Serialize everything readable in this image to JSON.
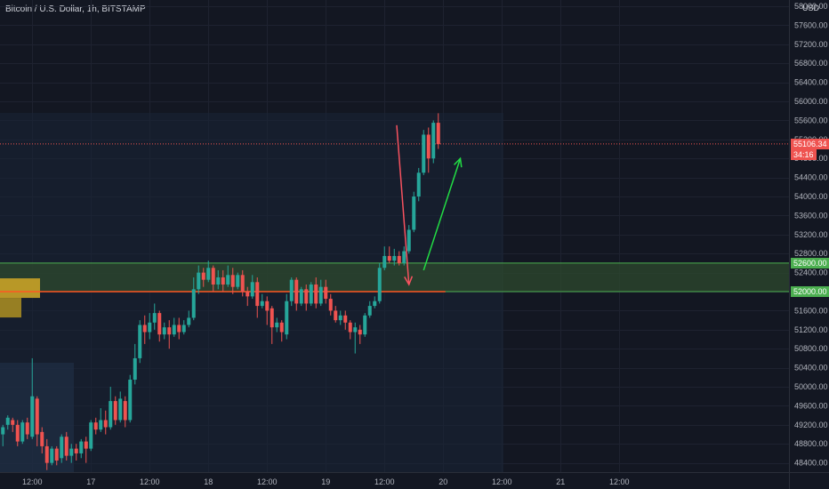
{
  "header": {
    "symbol_title": "Bitcoin / U.S. Dollar, 1h, BITSTAMP",
    "currency": "USD"
  },
  "colors": {
    "background": "#131722",
    "up": "#26a69a",
    "down": "#ef5350",
    "zone_fill": "#2e4a2e",
    "zone_line": "#4caf50",
    "support_line": "#ff5722",
    "arrow_down": "#f7525f",
    "arrow_up": "#22dd44",
    "axis_text": "#b2b5be"
  },
  "price_tags": {
    "current_price": "55106.34",
    "countdown": "34:16",
    "zone_top": "52600.00",
    "zone_bottom": "52000.00"
  },
  "chart_data": {
    "type": "candlestick",
    "ylim": [
      48300,
      58000
    ],
    "y_ticks": [
      48400,
      48800,
      49200,
      49600,
      50000,
      50400,
      50800,
      51200,
      51600,
      52000,
      52400,
      52800,
      53200,
      53600,
      54000,
      54400,
      54800,
      55200,
      55600,
      56000,
      56400,
      56800,
      57200,
      57600,
      58000
    ],
    "y_tick_labels": [
      "48400.00",
      "48800.00",
      "49200.00",
      "49600.00",
      "50000.00",
      "50400.00",
      "50800.00",
      "51200.00",
      "51600.00",
      "52000.00",
      "52400.00",
      "52800.00",
      "53200.00",
      "53600.00",
      "54000.00",
      "54400.00",
      "54800.00",
      "55200.00",
      "55600.00",
      "56000.00",
      "56400.00",
      "56800.00",
      "57200.00",
      "57600.00",
      "58000.00"
    ],
    "x_ticks": [
      {
        "label": "12:00",
        "bar": 6
      },
      {
        "label": "17",
        "bar": 18
      },
      {
        "label": "12:00",
        "bar": 30
      },
      {
        "label": "18",
        "bar": 42
      },
      {
        "label": "12:00",
        "bar": 54
      },
      {
        "label": "19",
        "bar": 66
      },
      {
        "label": "12:00",
        "bar": 78
      },
      {
        "label": "20",
        "bar": 90
      },
      {
        "label": "12:00",
        "bar": 102
      },
      {
        "label": "21",
        "bar": 114
      },
      {
        "label": "12:00",
        "bar": 126
      }
    ],
    "candles": [
      [
        49000,
        49150,
        48750,
        49200
      ],
      [
        49200,
        49350,
        49100,
        49400
      ],
      [
        49300,
        49200,
        49050,
        49350
      ],
      [
        49200,
        48850,
        48750,
        49300
      ],
      [
        48850,
        49250,
        48800,
        49300
      ],
      [
        49250,
        49000,
        48900,
        49350
      ],
      [
        48950,
        49800,
        48900,
        50600
      ],
      [
        49750,
        49000,
        48750,
        49800
      ],
      [
        49050,
        48750,
        48600,
        49150
      ],
      [
        48750,
        48400,
        48250,
        48900
      ],
      [
        48400,
        48700,
        48350,
        48750
      ],
      [
        48700,
        48450,
        48350,
        48750
      ],
      [
        48500,
        48950,
        48400,
        49000
      ],
      [
        48950,
        48550,
        48450,
        49050
      ],
      [
        48550,
        48700,
        48400,
        48800
      ],
      [
        48700,
        48600,
        48450,
        48800
      ],
      [
        48600,
        48850,
        48500,
        48900
      ],
      [
        48850,
        48700,
        48400,
        48950
      ],
      [
        48700,
        49250,
        48650,
        49300
      ],
      [
        49250,
        49100,
        49000,
        49350
      ],
      [
        49100,
        49300,
        49050,
        49550
      ],
      [
        49300,
        49150,
        49000,
        49500
      ],
      [
        49150,
        49700,
        49100,
        50000
      ],
      [
        49700,
        49300,
        49200,
        49800
      ],
      [
        49300,
        49750,
        49250,
        49900
      ],
      [
        49700,
        49300,
        49150,
        49800
      ],
      [
        49300,
        50150,
        49250,
        50250
      ],
      [
        50150,
        50600,
        50050,
        50900
      ],
      [
        50600,
        51300,
        50500,
        51400
      ],
      [
        51300,
        51150,
        50900,
        51500
      ],
      [
        51150,
        51350,
        51000,
        51550
      ],
      [
        51350,
        51550,
        51200,
        51750
      ],
      [
        51550,
        51100,
        50950,
        51600
      ],
      [
        51100,
        51250,
        51000,
        51350
      ],
      [
        51250,
        51100,
        50800,
        51400
      ],
      [
        51100,
        51300,
        51050,
        51450
      ],
      [
        51300,
        51150,
        51000,
        51450
      ],
      [
        51150,
        51300,
        51100,
        51400
      ],
      [
        51300,
        51450,
        51250,
        51600
      ],
      [
        51450,
        52050,
        51400,
        52300
      ],
      [
        52050,
        52400,
        51950,
        52550
      ],
      [
        52400,
        52250,
        52100,
        52500
      ],
      [
        52250,
        52500,
        52200,
        52650
      ],
      [
        52500,
        52150,
        52000,
        52550
      ],
      [
        52150,
        52300,
        52050,
        52450
      ],
      [
        52300,
        52150,
        52000,
        52450
      ],
      [
        52150,
        52350,
        52100,
        52550
      ],
      [
        52350,
        52100,
        51950,
        52500
      ],
      [
        52100,
        52350,
        52050,
        52400
      ],
      [
        52350,
        52000,
        51900,
        52450
      ],
      [
        52000,
        51900,
        51700,
        52100
      ],
      [
        51900,
        52200,
        51850,
        52350
      ],
      [
        52200,
        51700,
        51450,
        52300
      ],
      [
        51700,
        51800,
        51650,
        51950
      ],
      [
        51800,
        51600,
        51300,
        51900
      ],
      [
        51650,
        51250,
        50900,
        51700
      ],
      [
        51250,
        51350,
        51150,
        51450
      ],
      [
        51350,
        51150,
        50950,
        51400
      ],
      [
        51100,
        51800,
        51000,
        51950
      ],
      [
        51800,
        52250,
        51700,
        52300
      ],
      [
        52250,
        51750,
        51600,
        52300
      ],
      [
        51750,
        52050,
        51700,
        52100
      ],
      [
        52050,
        51750,
        51600,
        52150
      ],
      [
        51750,
        52150,
        51700,
        52200
      ],
      [
        52150,
        51750,
        51650,
        52300
      ],
      [
        51750,
        52100,
        51700,
        52250
      ],
      [
        52100,
        51850,
        51750,
        52250
      ],
      [
        51850,
        51600,
        51500,
        51950
      ],
      [
        51600,
        51400,
        51350,
        51700
      ],
      [
        51400,
        51500,
        51300,
        51600
      ],
      [
        51500,
        51350,
        51200,
        51600
      ],
      [
        51350,
        51150,
        51000,
        51400
      ],
      [
        51150,
        51250,
        50700,
        51350
      ],
      [
        51200,
        51100,
        50900,
        51300
      ],
      [
        51100,
        51500,
        51050,
        51550
      ],
      [
        51500,
        51700,
        51450,
        51800
      ],
      [
        51700,
        51800,
        51650,
        51900
      ],
      [
        51800,
        52500,
        51750,
        52600
      ],
      [
        52500,
        52750,
        52450,
        52950
      ],
      [
        52750,
        52650,
        52600,
        52950
      ],
      [
        52650,
        52750,
        52550,
        52900
      ],
      [
        52750,
        52600,
        52550,
        52850
      ],
      [
        52600,
        52850,
        52550,
        52950
      ],
      [
        52850,
        53300,
        52800,
        53400
      ],
      [
        53300,
        54000,
        53250,
        54100
      ],
      [
        54000,
        54500,
        53900,
        54600
      ],
      [
        54500,
        55300,
        54450,
        55400
      ],
      [
        55300,
        54800,
        54500,
        55450
      ],
      [
        54800,
        55550,
        54700,
        55600
      ],
      [
        55550,
        55100,
        55000,
        55750
      ]
    ],
    "support_zone": {
      "low": 52000,
      "high": 52600
    },
    "support_line": 52000,
    "left_box_price": 51850,
    "current_price": 55106.34,
    "arrows": [
      {
        "direction": "down",
        "from_bar": 80.5,
        "from_price": 55500,
        "to_bar": 83,
        "to_price": 52150
      },
      {
        "direction": "up",
        "from_bar": 86,
        "from_price": 52450,
        "to_bar": 93.5,
        "to_price": 54800
      }
    ]
  }
}
